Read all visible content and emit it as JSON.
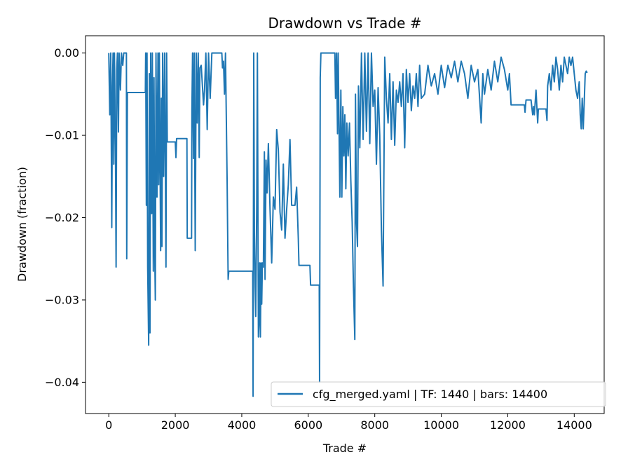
{
  "chart_data": {
    "type": "line",
    "title": "Drawdown vs Trade #",
    "xlabel": "Trade #",
    "ylabel": "Drawdown (fraction)",
    "xlim": [
      -700,
      14900
    ],
    "ylim": [
      -0.0438,
      0.0021
    ],
    "xticks": [
      0,
      2000,
      4000,
      6000,
      8000,
      10000,
      12000,
      14000
    ],
    "xtick_labels": [
      "0",
      "2000",
      "4000",
      "6000",
      "8000",
      "10000",
      "12000",
      "14000"
    ],
    "yticks": [
      0,
      -0.01,
      -0.02,
      -0.03,
      -0.04
    ],
    "ytick_labels": [
      "0.00",
      "−0.01",
      "−0.02",
      "−0.03",
      "−0.04"
    ],
    "grid": false,
    "legend_position": "lower-right",
    "series": [
      {
        "name": "cfg_merged.yaml | TF: 1440 | bars: 14400",
        "color": "#1f77b4",
        "points": [
          [
            0,
            0
          ],
          [
            30,
            -0.0075
          ],
          [
            60,
            0
          ],
          [
            90,
            -0.0212
          ],
          [
            110,
            -0.004
          ],
          [
            130,
            0
          ],
          [
            150,
            -0.0135
          ],
          [
            170,
            0
          ],
          [
            200,
            -0.0112
          ],
          [
            220,
            -0.026
          ],
          [
            240,
            -0.002
          ],
          [
            260,
            0
          ],
          [
            290,
            -0.0096
          ],
          [
            310,
            0
          ],
          [
            350,
            -0.0045
          ],
          [
            380,
            0
          ],
          [
            420,
            -0.0015
          ],
          [
            450,
            0
          ],
          [
            530,
            0
          ],
          [
            540,
            -0.025
          ],
          [
            560,
            -0.0048
          ],
          [
            1100,
            -0.0048
          ],
          [
            1110,
            0
          ],
          [
            1130,
            -0.0185
          ],
          [
            1150,
            0
          ],
          [
            1170,
            -0.026
          ],
          [
            1200,
            -0.0355
          ],
          [
            1220,
            -0.0025
          ],
          [
            1240,
            -0.034
          ],
          [
            1260,
            0
          ],
          [
            1290,
            -0.0195
          ],
          [
            1310,
            0
          ],
          [
            1340,
            -0.0265
          ],
          [
            1360,
            -0.003
          ],
          [
            1380,
            -0.0235
          ],
          [
            1400,
            -0.03
          ],
          [
            1420,
            0
          ],
          [
            1450,
            -0.0175
          ],
          [
            1480,
            0
          ],
          [
            1500,
            -0.016
          ],
          [
            1520,
            0
          ],
          [
            1560,
            -0.024
          ],
          [
            1580,
            -0.0055
          ],
          [
            1600,
            -0.0235
          ],
          [
            1620,
            0
          ],
          [
            1650,
            -0.015
          ],
          [
            1680,
            0
          ],
          [
            1720,
            -0.026
          ],
          [
            1740,
            0
          ],
          [
            1760,
            -0.0108
          ],
          [
            2000,
            -0.0108
          ],
          [
            2020,
            -0.0127
          ],
          [
            2040,
            -0.0104
          ],
          [
            2350,
            -0.0104
          ],
          [
            2360,
            -0.0225
          ],
          [
            2490,
            -0.0225
          ],
          [
            2500,
            -0.007
          ],
          [
            2520,
            0
          ],
          [
            2550,
            -0.0128
          ],
          [
            2570,
            0
          ],
          [
            2600,
            -0.024
          ],
          [
            2630,
            0
          ],
          [
            2660,
            -0.0085
          ],
          [
            2690,
            0
          ],
          [
            2720,
            -0.0127
          ],
          [
            2740,
            -0.0018
          ],
          [
            2780,
            -0.0015
          ],
          [
            2850,
            -0.0063
          ],
          [
            2880,
            -0.0045
          ],
          [
            2920,
            0
          ],
          [
            2960,
            -0.0093
          ],
          [
            3000,
            0
          ],
          [
            3050,
            -0.0055
          ],
          [
            3100,
            0
          ],
          [
            3400,
            0
          ],
          [
            3420,
            -0.0018
          ],
          [
            3450,
            -0.001
          ],
          [
            3480,
            -0.005
          ],
          [
            3510,
            0
          ],
          [
            3560,
            -0.0158
          ],
          [
            3590,
            -0.0275
          ],
          [
            3610,
            -0.0265
          ],
          [
            4330,
            -0.0265
          ],
          [
            4340,
            -0.0417
          ],
          [
            4360,
            0
          ],
          [
            4380,
            -0.0218
          ],
          [
            4400,
            -0.028
          ],
          [
            4420,
            -0.032
          ],
          [
            4450,
            -0.0185
          ],
          [
            4470,
            0
          ],
          [
            4500,
            -0.0345
          ],
          [
            4520,
            -0.0325
          ],
          [
            4540,
            -0.0255
          ],
          [
            4560,
            -0.0345
          ],
          [
            4580,
            -0.0255
          ],
          [
            4600,
            -0.0305
          ],
          [
            4620,
            -0.0255
          ],
          [
            4650,
            -0.026
          ],
          [
            4680,
            -0.012
          ],
          [
            4700,
            -0.0275
          ],
          [
            4730,
            -0.013
          ],
          [
            4760,
            -0.017
          ],
          [
            4800,
            -0.011
          ],
          [
            4850,
            -0.019
          ],
          [
            4900,
            -0.0255
          ],
          [
            4950,
            -0.0175
          ],
          [
            5000,
            -0.019
          ],
          [
            5050,
            -0.0093
          ],
          [
            5100,
            -0.0118
          ],
          [
            5150,
            -0.0193
          ],
          [
            5200,
            -0.0215
          ],
          [
            5250,
            -0.0135
          ],
          [
            5300,
            -0.0225
          ],
          [
            5350,
            -0.019
          ],
          [
            5400,
            -0.016
          ],
          [
            5450,
            -0.0105
          ],
          [
            5500,
            -0.0185
          ],
          [
            5600,
            -0.0185
          ],
          [
            5650,
            -0.0163
          ],
          [
            5700,
            -0.0225
          ],
          [
            5720,
            -0.0258
          ],
          [
            6050,
            -0.0258
          ],
          [
            6070,
            -0.0282
          ],
          [
            6330,
            -0.0282
          ],
          [
            6340,
            -0.04
          ],
          [
            6360,
            -0.003
          ],
          [
            6380,
            0
          ],
          [
            6800,
            0
          ],
          [
            6820,
            -0.0055
          ],
          [
            6850,
            0
          ],
          [
            6880,
            -0.0098
          ],
          [
            6900,
            0
          ],
          [
            6950,
            -0.0175
          ],
          [
            6980,
            -0.0045
          ],
          [
            7010,
            -0.0175
          ],
          [
            7040,
            -0.0065
          ],
          [
            7070,
            -0.0125
          ],
          [
            7100,
            -0.0075
          ],
          [
            7130,
            -0.0165
          ],
          [
            7160,
            -0.0085
          ],
          [
            7200,
            -0.0125
          ],
          [
            7240,
            -0.0085
          ],
          [
            7280,
            -0.0155
          ],
          [
            7320,
            -0.0205
          ],
          [
            7360,
            -0.0285
          ],
          [
            7400,
            -0.0348
          ],
          [
            7420,
            -0.005
          ],
          [
            7450,
            -0.0205
          ],
          [
            7480,
            -0.0235
          ],
          [
            7510,
            -0.004
          ],
          [
            7550,
            -0.0115
          ],
          [
            7600,
            0
          ],
          [
            7650,
            -0.0105
          ],
          [
            7700,
            0
          ],
          [
            7750,
            -0.0095
          ],
          [
            7800,
            0
          ],
          [
            7850,
            -0.011
          ],
          [
            7900,
            0
          ],
          [
            7950,
            -0.0065
          ],
          [
            8000,
            -0.0045
          ],
          [
            8050,
            -0.0135
          ],
          [
            8100,
            -0.0042
          ],
          [
            8150,
            -0.01
          ],
          [
            8200,
            -0.0215
          ],
          [
            8250,
            -0.0283
          ],
          [
            8300,
            -0.0005
          ],
          [
            8350,
            -0.0055
          ],
          [
            8400,
            -0.0085
          ],
          [
            8450,
            -0.0025
          ],
          [
            8500,
            -0.0105
          ],
          [
            8550,
            -0.0035
          ],
          [
            8600,
            -0.0112
          ],
          [
            8650,
            -0.0045
          ],
          [
            8700,
            -0.006
          ],
          [
            8750,
            -0.0035
          ],
          [
            8800,
            -0.0065
          ],
          [
            8850,
            -0.0025
          ],
          [
            8900,
            -0.0115
          ],
          [
            8950,
            -0.002
          ],
          [
            9000,
            -0.006
          ],
          [
            9050,
            -0.0025
          ],
          [
            9100,
            -0.007
          ],
          [
            9150,
            -0.004
          ],
          [
            9200,
            -0.0055
          ],
          [
            9250,
            -0.0025
          ],
          [
            9300,
            -0.0065
          ],
          [
            9350,
            -0.0015
          ],
          [
            9400,
            -0.0055
          ],
          [
            9500,
            -0.005
          ],
          [
            9600,
            -0.0015
          ],
          [
            9700,
            -0.004
          ],
          [
            9800,
            -0.0025
          ],
          [
            9900,
            -0.005
          ],
          [
            10000,
            -0.0015
          ],
          [
            10100,
            -0.0042
          ],
          [
            10200,
            -0.0015
          ],
          [
            10300,
            -0.003
          ],
          [
            10400,
            -0.001
          ],
          [
            10500,
            -0.0035
          ],
          [
            10600,
            -0.001
          ],
          [
            10700,
            -0.0025
          ],
          [
            10800,
            -0.0055
          ],
          [
            10900,
            -0.0015
          ],
          [
            11000,
            -0.0035
          ],
          [
            11100,
            -0.002
          ],
          [
            11200,
            -0.0085
          ],
          [
            11250,
            -0.0025
          ],
          [
            11300,
            -0.005
          ],
          [
            11400,
            -0.002
          ],
          [
            11500,
            -0.0045
          ],
          [
            11600,
            -0.001
          ],
          [
            11700,
            -0.0035
          ],
          [
            11800,
            -0.0005
          ],
          [
            11900,
            -0.002
          ],
          [
            12000,
            -0.0045
          ],
          [
            12050,
            -0.0025
          ],
          [
            12100,
            -0.0063
          ],
          [
            12500,
            -0.0063
          ],
          [
            12520,
            -0.0072
          ],
          [
            12550,
            -0.0057
          ],
          [
            12700,
            -0.0057
          ],
          [
            12750,
            -0.0075
          ],
          [
            12780,
            -0.0065
          ],
          [
            12800,
            -0.0075
          ],
          [
            12850,
            -0.0045
          ],
          [
            12900,
            -0.0085
          ],
          [
            12920,
            -0.0068
          ],
          [
            13150,
            -0.0068
          ],
          [
            13180,
            -0.0082
          ],
          [
            13200,
            -0.004
          ],
          [
            13250,
            -0.0025
          ],
          [
            13300,
            -0.0045
          ],
          [
            13350,
            -0.0015
          ],
          [
            13400,
            -0.0035
          ],
          [
            13450,
            -0.0005
          ],
          [
            13500,
            -0.002
          ],
          [
            13550,
            -0.0045
          ],
          [
            13600,
            -0.0015
          ],
          [
            13650,
            -0.0035
          ],
          [
            13700,
            -0.0005
          ],
          [
            13750,
            -0.0015
          ],
          [
            13800,
            -0.0025
          ],
          [
            13850,
            -0.0005
          ],
          [
            13900,
            -0.0015
          ],
          [
            13950,
            -0.0005
          ],
          [
            14000,
            -0.0025
          ],
          [
            14050,
            -0.0045
          ],
          [
            14100,
            -0.0055
          ],
          [
            14150,
            -0.0035
          ],
          [
            14180,
            -0.0075
          ],
          [
            14210,
            -0.0092
          ],
          [
            14240,
            -0.0055
          ],
          [
            14270,
            -0.0092
          ],
          [
            14300,
            -0.006
          ],
          [
            14330,
            -0.0025
          ],
          [
            14360,
            -0.0022
          ],
          [
            14390,
            -0.0024
          ]
        ]
      }
    ]
  }
}
